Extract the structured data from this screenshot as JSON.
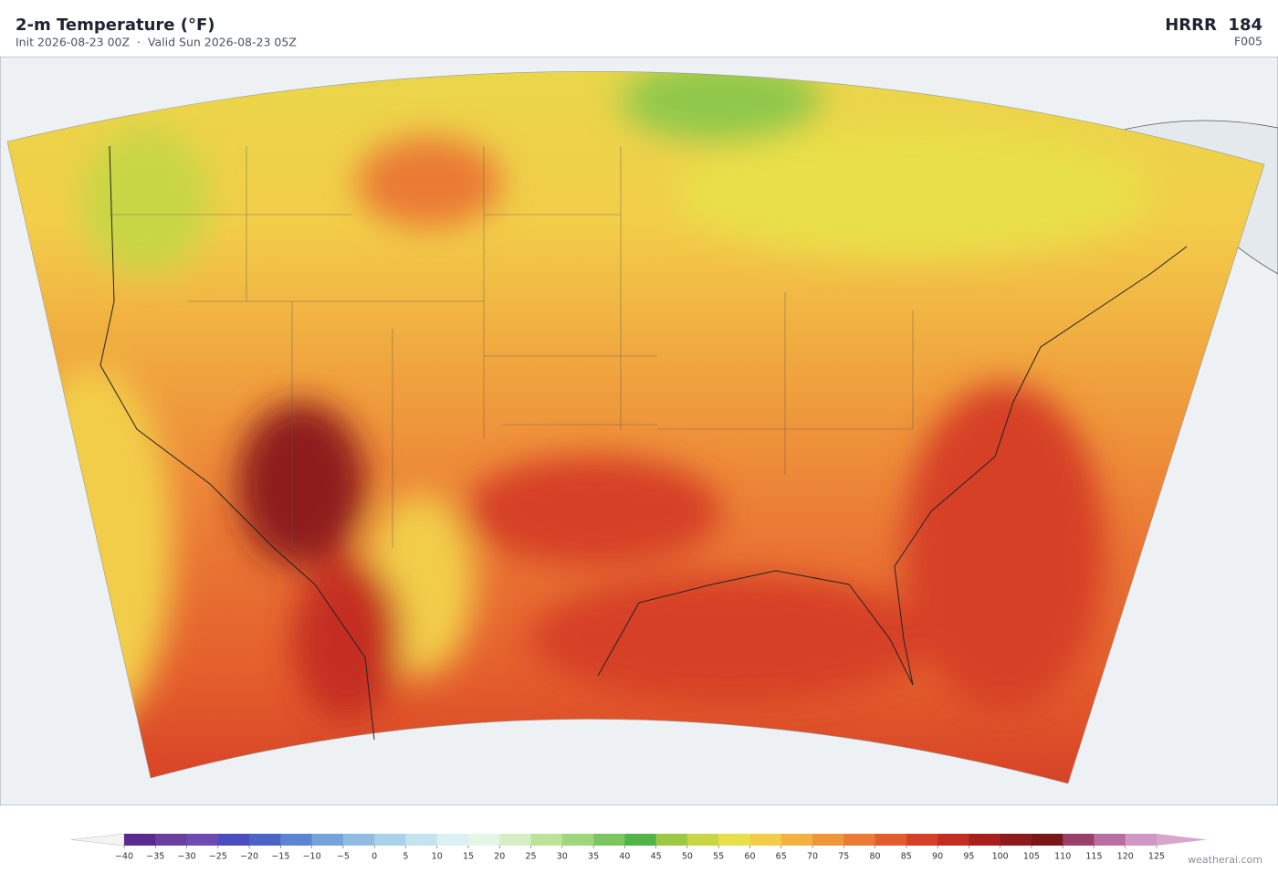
{
  "header": {
    "title": "2-m Temperature  (°F)",
    "subtitle": "Init 2026-08-23 00Z  ·  Valid Sun 2026-08-23 05Z",
    "model": "HRRR  184",
    "forecast_hour": "F005"
  },
  "colorbar": {
    "ticks": [
      {
        "value": -40,
        "label": "−40"
      },
      {
        "value": -35,
        "label": "−35"
      },
      {
        "value": -30,
        "label": "−30"
      },
      {
        "value": -25,
        "label": "−25"
      },
      {
        "value": -20,
        "label": "−20"
      },
      {
        "value": -15,
        "label": "−15"
      },
      {
        "value": -10,
        "label": "−10"
      },
      {
        "value": -5,
        "label": "−5"
      },
      0,
      5,
      10,
      15,
      20,
      25,
      30,
      35,
      40,
      45,
      50,
      55,
      60,
      65,
      70,
      75,
      80,
      85,
      90,
      95,
      100,
      105,
      110,
      115,
      120,
      125
    ],
    "colors": [
      "#5b2a8e",
      "#6a3fa0",
      "#6e4bb0",
      "#4a4cc0",
      "#4d63c8",
      "#5b85d2",
      "#76a3da",
      "#91bce2",
      "#a9d2e8",
      "#c3e3ef",
      "#daf0f3",
      "#e6f6e6",
      "#d6eec4",
      "#bde39b",
      "#9fd67c",
      "#7cc661",
      "#52b448",
      "#9bc944",
      "#c8d645",
      "#e8e04a",
      "#f2cd49",
      "#f3b140",
      "#ef963b",
      "#ea7a35",
      "#e35d2c",
      "#d64027",
      "#c42d22",
      "#a8201e",
      "#8e1a1c",
      "#7a1618",
      "#9a3f6a",
      "#b86ea0",
      "#d197c4"
    ],
    "under_color": "#f4f4f4",
    "over_color": "#d9a5cc"
  },
  "footer": {
    "credit": "weatherai.com"
  }
}
